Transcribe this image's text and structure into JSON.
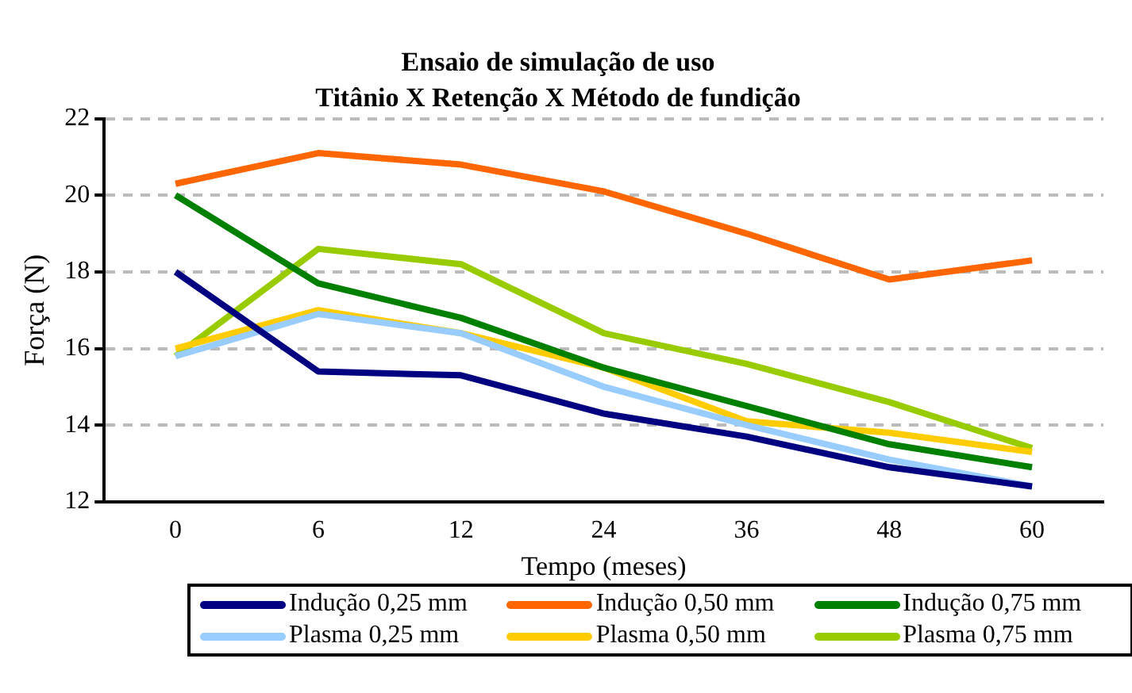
{
  "chart_data": {
    "type": "line",
    "title": "Ensaio de simulação de uso",
    "subtitle": "Titânio X Retenção X Método de fundição",
    "xlabel": "Tempo (meses)",
    "ylabel": "Força (N)",
    "categories": [
      "0",
      "6",
      "12",
      "24",
      "36",
      "48",
      "60"
    ],
    "series": [
      {
        "name": "Indução 0,25 mm",
        "color": "#000080",
        "values": [
          18.0,
          15.4,
          15.3,
          14.3,
          13.7,
          12.9,
          12.4
        ]
      },
      {
        "name": "Indução 0,50 mm",
        "color": "#ff6600",
        "values": [
          20.3,
          21.1,
          20.8,
          20.1,
          19.0,
          17.8,
          18.3
        ]
      },
      {
        "name": "Indução 0,75 mm",
        "color": "#008000",
        "values": [
          20.0,
          17.7,
          16.8,
          15.5,
          14.5,
          13.5,
          12.9
        ]
      },
      {
        "name": "Plasma 0,25 mm",
        "color": "#99ccff",
        "values": [
          15.8,
          16.9,
          16.4,
          15.0,
          14.0,
          13.1,
          12.4
        ]
      },
      {
        "name": "Plasma 0,50 mm",
        "color": "#ffcc00",
        "values": [
          16.0,
          17.0,
          16.4,
          15.5,
          14.1,
          13.8,
          13.3
        ]
      },
      {
        "name": "Plasma 0,75 mm",
        "color": "#99cc00",
        "values": [
          15.8,
          18.6,
          18.2,
          16.4,
          15.6,
          14.6,
          13.4
        ]
      }
    ],
    "ylim": [
      12,
      22
    ],
    "yticks": [
      12,
      14,
      16,
      18,
      20,
      22
    ],
    "grid": "y",
    "legend": "bottom",
    "marker": "none",
    "line_style": "solid"
  }
}
